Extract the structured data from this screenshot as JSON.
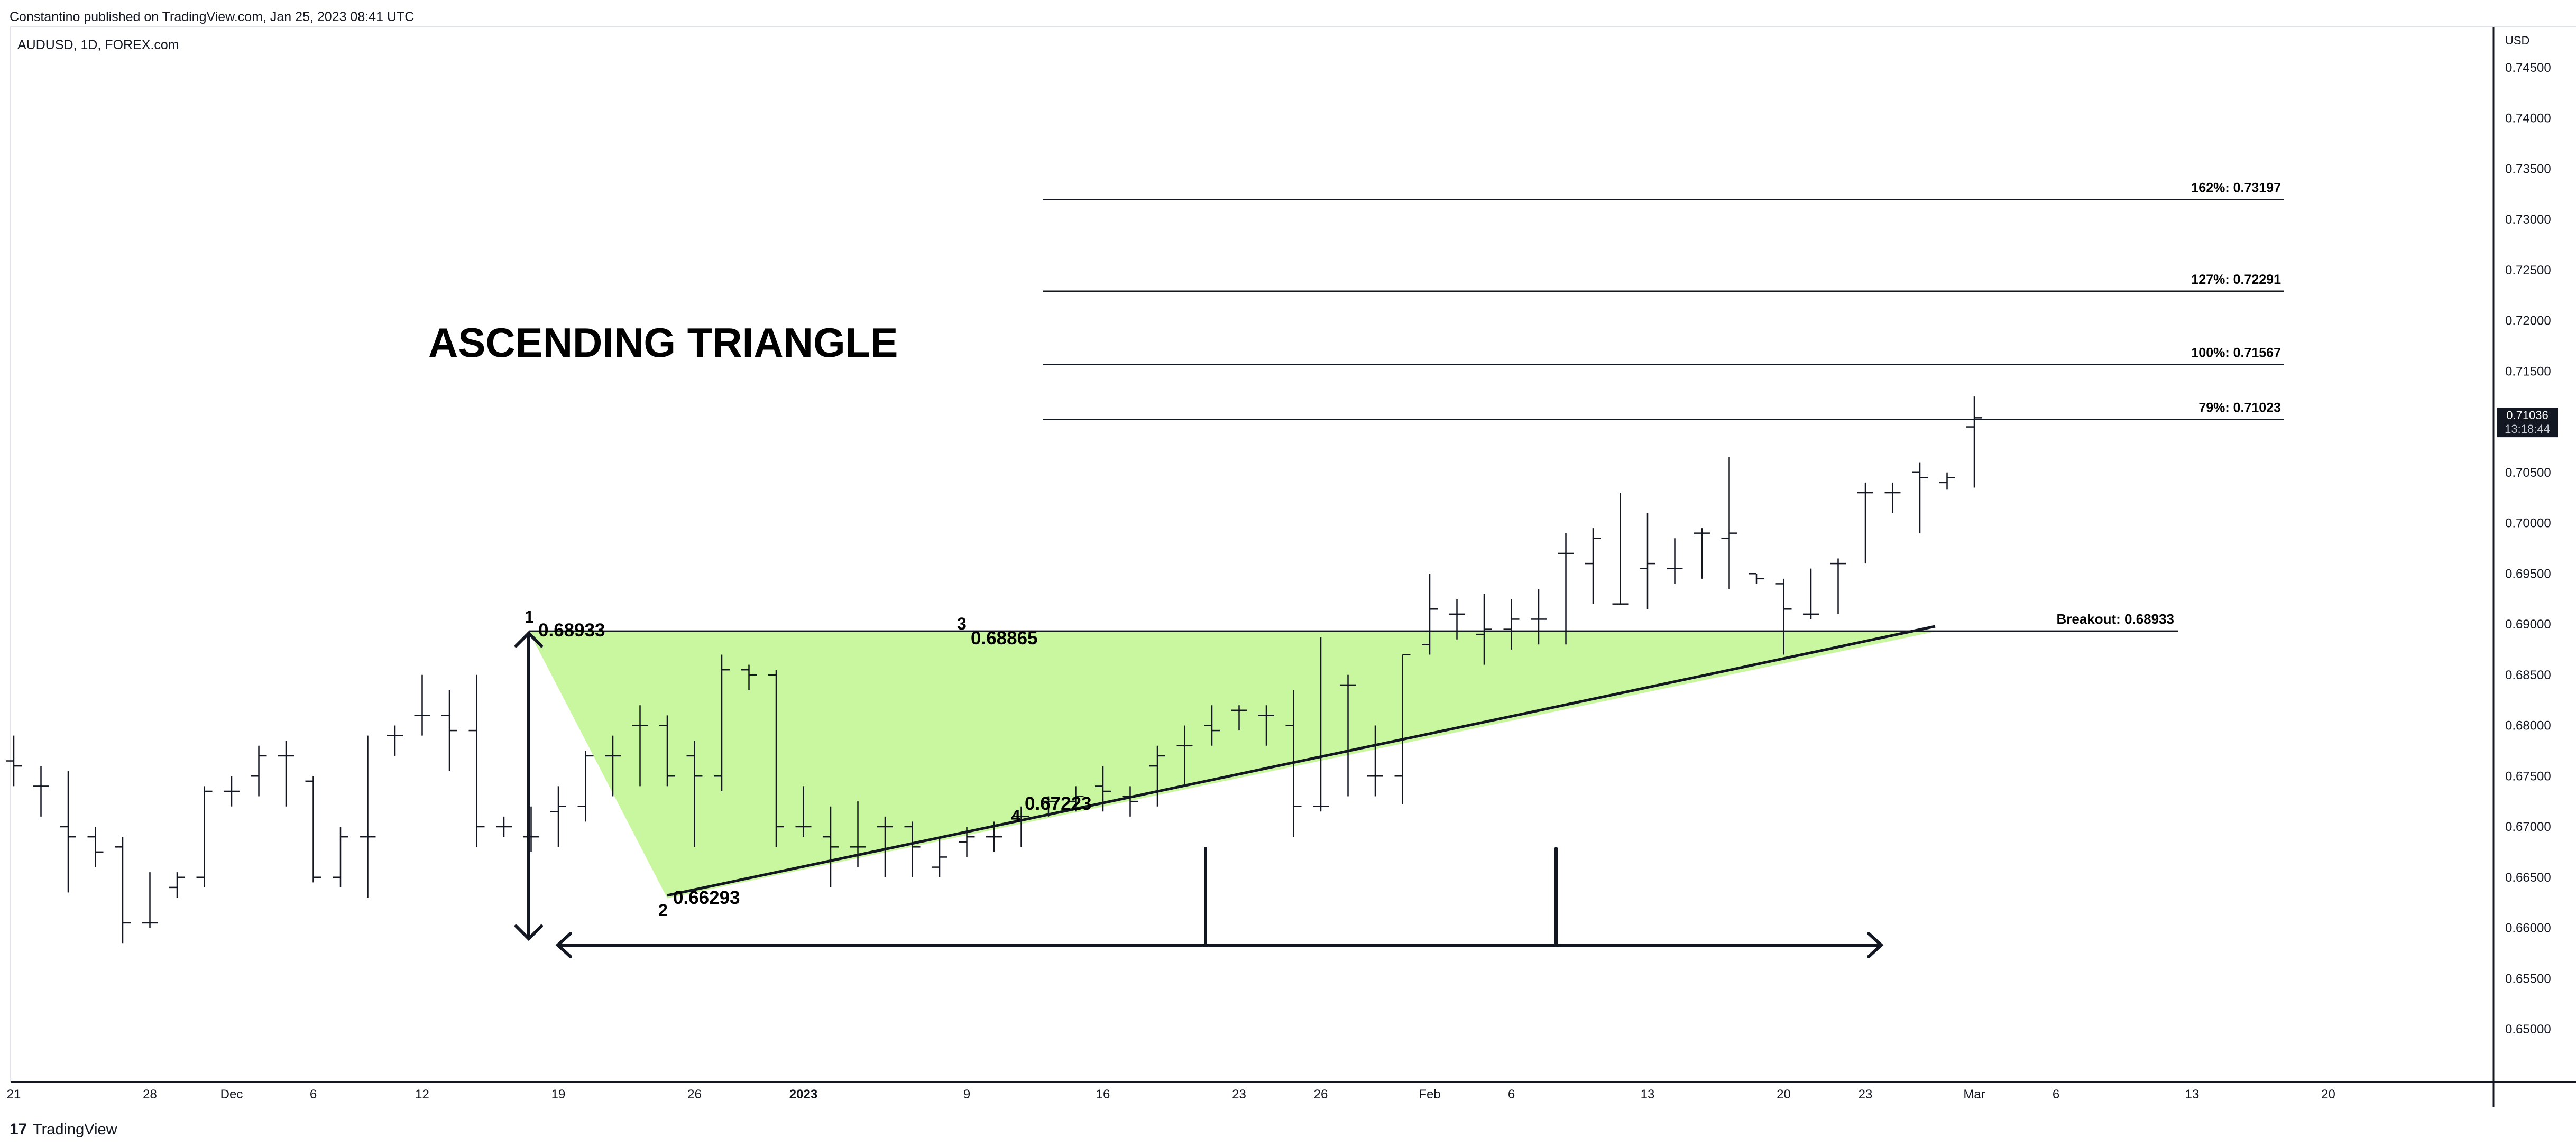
{
  "header": {
    "published_text": "Constantino published on TradingView.com, Jan 25, 2023 08:41 UTC",
    "symbol_text": "AUDUSD, 1D, FOREX.com"
  },
  "footer": {
    "brand_mark": "17",
    "brand_text": "TradingView"
  },
  "price_scale": {
    "currency": "USD",
    "ticks": [
      "0.74500",
      "0.74000",
      "0.73500",
      "0.73000",
      "0.72500",
      "0.72000",
      "0.71500",
      "0.71000",
      "0.70500",
      "0.70000",
      "0.69500",
      "0.69000",
      "0.68500",
      "0.68000",
      "0.67500",
      "0.67000",
      "0.66500",
      "0.66000",
      "0.65500",
      "0.65000"
    ],
    "last_price": "0.71036",
    "countdown": "13:18:44"
  },
  "time_axis": {
    "labels": [
      {
        "text": "21",
        "idx": 0,
        "bold": false
      },
      {
        "text": "28",
        "idx": 5,
        "bold": false
      },
      {
        "text": "Dec",
        "idx": 8,
        "bold": false
      },
      {
        "text": "6",
        "idx": 11,
        "bold": false
      },
      {
        "text": "12",
        "idx": 15,
        "bold": false
      },
      {
        "text": "19",
        "idx": 20,
        "bold": false
      },
      {
        "text": "26",
        "idx": 25,
        "bold": false
      },
      {
        "text": "2023",
        "idx": 29,
        "bold": true
      },
      {
        "text": "9",
        "idx": 35,
        "bold": false
      },
      {
        "text": "16",
        "idx": 40,
        "bold": false
      },
      {
        "text": "23",
        "idx": 45,
        "bold": false
      },
      {
        "text": "26",
        "idx": 48,
        "bold": false
      },
      {
        "text": "Feb",
        "idx": 52,
        "bold": false
      },
      {
        "text": "6",
        "idx": 55,
        "bold": false
      },
      {
        "text": "13",
        "idx": 60,
        "bold": false
      },
      {
        "text": "20",
        "idx": 65,
        "bold": false
      },
      {
        "text": "23",
        "idx": 68,
        "bold": false
      },
      {
        "text": "Mar",
        "idx": 72,
        "bold": false
      },
      {
        "text": "6",
        "idx": 75,
        "bold": false
      },
      {
        "text": "13",
        "idx": 80,
        "bold": false
      },
      {
        "text": "20",
        "idx": 85,
        "bold": false
      }
    ]
  },
  "annotations": {
    "pattern_title": "ASCENDING TRIANGLE",
    "point_labels": [
      "1",
      "2",
      "3",
      "4"
    ],
    "point_values": [
      "0.68933",
      "0.66293",
      "0.68865",
      "0.67223"
    ],
    "breakout_label": "Breakout: 0.68933",
    "fib_levels": [
      {
        "label": "162%: 0.73197",
        "price": 0.73197
      },
      {
        "label": "127%: 0.72291",
        "price": 0.72291
      },
      {
        "label": "100%: 0.71567",
        "price": 0.71567
      },
      {
        "label": "79%: 0.71023",
        "price": 0.71023
      }
    ]
  },
  "colors": {
    "triangle_fill": "#c9f7a0",
    "bars": "#131722",
    "price_badge": "#131722"
  },
  "chart_data": {
    "type": "ohlc",
    "title": "AUDUSD, 1D, FOREX.com",
    "ylim": [
      0.645,
      0.7475
    ],
    "bars": [
      {
        "o": 0.6765,
        "h": 0.679,
        "l": 0.674,
        "c": 0.676
      },
      {
        "o": 0.674,
        "h": 0.676,
        "l": 0.671,
        "c": 0.674
      },
      {
        "o": 0.67,
        "h": 0.6755,
        "l": 0.6635,
        "c": 0.669
      },
      {
        "o": 0.669,
        "h": 0.67,
        "l": 0.666,
        "c": 0.6675
      },
      {
        "o": 0.668,
        "h": 0.669,
        "l": 0.6585,
        "c": 0.6605
      },
      {
        "o": 0.6605,
        "h": 0.6655,
        "l": 0.66,
        "c": 0.6605
      },
      {
        "o": 0.664,
        "h": 0.6655,
        "l": 0.663,
        "c": 0.665
      },
      {
        "o": 0.665,
        "h": 0.674,
        "l": 0.664,
        "c": 0.6735
      },
      {
        "o": 0.6735,
        "h": 0.675,
        "l": 0.672,
        "c": 0.6735
      },
      {
        "o": 0.675,
        "h": 0.678,
        "l": 0.673,
        "c": 0.677
      },
      {
        "o": 0.677,
        "h": 0.6785,
        "l": 0.672,
        "c": 0.677
      },
      {
        "o": 0.6745,
        "h": 0.675,
        "l": 0.6645,
        "c": 0.665
      },
      {
        "o": 0.665,
        "h": 0.67,
        "l": 0.664,
        "c": 0.669
      },
      {
        "o": 0.669,
        "h": 0.679,
        "l": 0.663,
        "c": 0.669
      },
      {
        "o": 0.679,
        "h": 0.68,
        "l": 0.677,
        "c": 0.679
      },
      {
        "o": 0.681,
        "h": 0.685,
        "l": 0.679,
        "c": 0.681
      },
      {
        "o": 0.681,
        "h": 0.6835,
        "l": 0.6755,
        "c": 0.6795
      },
      {
        "o": 0.6795,
        "h": 0.685,
        "l": 0.668,
        "c": 0.67
      },
      {
        "o": 0.67,
        "h": 0.671,
        "l": 0.669,
        "c": 0.67
      },
      {
        "o": 0.669,
        "h": 0.672,
        "l": 0.6675,
        "c": 0.669
      },
      {
        "o": 0.6715,
        "h": 0.674,
        "l": 0.668,
        "c": 0.672
      },
      {
        "o": 0.672,
        "h": 0.6775,
        "l": 0.6705,
        "c": 0.677
      },
      {
        "o": 0.677,
        "h": 0.679,
        "l": 0.673,
        "c": 0.677
      },
      {
        "o": 0.68,
        "h": 0.682,
        "l": 0.674,
        "c": 0.68
      },
      {
        "o": 0.68,
        "h": 0.681,
        "l": 0.674,
        "c": 0.675
      },
      {
        "o": 0.677,
        "h": 0.6785,
        "l": 0.668,
        "c": 0.675
      },
      {
        "o": 0.675,
        "h": 0.687,
        "l": 0.6735,
        "c": 0.6855
      },
      {
        "o": 0.6855,
        "h": 0.686,
        "l": 0.6835,
        "c": 0.685
      },
      {
        "o": 0.685,
        "h": 0.6855,
        "l": 0.668,
        "c": 0.67
      },
      {
        "o": 0.67,
        "h": 0.674,
        "l": 0.669,
        "c": 0.67
      },
      {
        "o": 0.669,
        "h": 0.672,
        "l": 0.664,
        "c": 0.668
      },
      {
        "o": 0.668,
        "h": 0.6725,
        "l": 0.666,
        "c": 0.668
      },
      {
        "o": 0.67,
        "h": 0.671,
        "l": 0.665,
        "c": 0.67
      },
      {
        "o": 0.67,
        "h": 0.6705,
        "l": 0.665,
        "c": 0.668
      },
      {
        "o": 0.666,
        "h": 0.669,
        "l": 0.665,
        "c": 0.667
      },
      {
        "o": 0.6685,
        "h": 0.67,
        "l": 0.667,
        "c": 0.669
      },
      {
        "o": 0.669,
        "h": 0.6705,
        "l": 0.6675,
        "c": 0.669
      },
      {
        "o": 0.671,
        "h": 0.672,
        "l": 0.668,
        "c": 0.671
      },
      {
        "o": 0.6725,
        "h": 0.673,
        "l": 0.671,
        "c": 0.6725
      },
      {
        "o": 0.6725,
        "h": 0.674,
        "l": 0.6715,
        "c": 0.673
      },
      {
        "o": 0.674,
        "h": 0.676,
        "l": 0.6715,
        "c": 0.6735
      },
      {
        "o": 0.673,
        "h": 0.674,
        "l": 0.671,
        "c": 0.6725
      },
      {
        "o": 0.676,
        "h": 0.678,
        "l": 0.672,
        "c": 0.677
      },
      {
        "o": 0.678,
        "h": 0.68,
        "l": 0.674,
        "c": 0.678
      },
      {
        "o": 0.68,
        "h": 0.682,
        "l": 0.678,
        "c": 0.6795
      },
      {
        "o": 0.6815,
        "h": 0.682,
        "l": 0.6795,
        "c": 0.6815
      },
      {
        "o": 0.681,
        "h": 0.682,
        "l": 0.678,
        "c": 0.681
      },
      {
        "o": 0.68,
        "h": 0.6835,
        "l": 0.669,
        "c": 0.672
      },
      {
        "o": 0.672,
        "h": 0.6887,
        "l": 0.6715,
        "c": 0.672
      },
      {
        "o": 0.684,
        "h": 0.685,
        "l": 0.673,
        "c": 0.684
      },
      {
        "o": 0.675,
        "h": 0.68,
        "l": 0.673,
        "c": 0.675
      },
      {
        "o": 0.675,
        "h": 0.687,
        "l": 0.6722,
        "c": 0.687
      },
      {
        "o": 0.688,
        "h": 0.695,
        "l": 0.687,
        "c": 0.6915
      },
      {
        "o": 0.691,
        "h": 0.6925,
        "l": 0.6885,
        "c": 0.691
      },
      {
        "o": 0.689,
        "h": 0.693,
        "l": 0.686,
        "c": 0.6895
      },
      {
        "o": 0.6895,
        "h": 0.6925,
        "l": 0.6875,
        "c": 0.6905
      },
      {
        "o": 0.6905,
        "h": 0.6935,
        "l": 0.688,
        "c": 0.6905
      },
      {
        "o": 0.697,
        "h": 0.699,
        "l": 0.688,
        "c": 0.697
      },
      {
        "o": 0.696,
        "h": 0.6995,
        "l": 0.692,
        "c": 0.6985
      },
      {
        "o": 0.692,
        "h": 0.703,
        "l": 0.692,
        "c": 0.692
      },
      {
        "o": 0.6955,
        "h": 0.701,
        "l": 0.6915,
        "c": 0.696
      },
      {
        "o": 0.6955,
        "h": 0.6985,
        "l": 0.694,
        "c": 0.6955
      },
      {
        "o": 0.699,
        "h": 0.6995,
        "l": 0.6945,
        "c": 0.699
      },
      {
        "o": 0.6985,
        "h": 0.7065,
        "l": 0.6935,
        "c": 0.699
      },
      {
        "o": 0.695,
        "h": 0.695,
        "l": 0.694,
        "c": 0.6945
      },
      {
        "o": 0.694,
        "h": 0.6945,
        "l": 0.687,
        "c": 0.6915
      },
      {
        "o": 0.691,
        "h": 0.6955,
        "l": 0.6905,
        "c": 0.691
      },
      {
        "o": 0.696,
        "h": 0.6965,
        "l": 0.691,
        "c": 0.696
      },
      {
        "o": 0.703,
        "h": 0.704,
        "l": 0.696,
        "c": 0.703
      },
      {
        "o": 0.703,
        "h": 0.704,
        "l": 0.701,
        "c": 0.703
      },
      {
        "o": 0.705,
        "h": 0.706,
        "l": 0.699,
        "c": 0.7045
      },
      {
        "o": 0.704,
        "h": 0.705,
        "l": 0.7033,
        "c": 0.7045
      },
      {
        "o": 0.7095,
        "h": 0.7125,
        "l": 0.7035,
        "c": 0.7104
      }
    ]
  }
}
